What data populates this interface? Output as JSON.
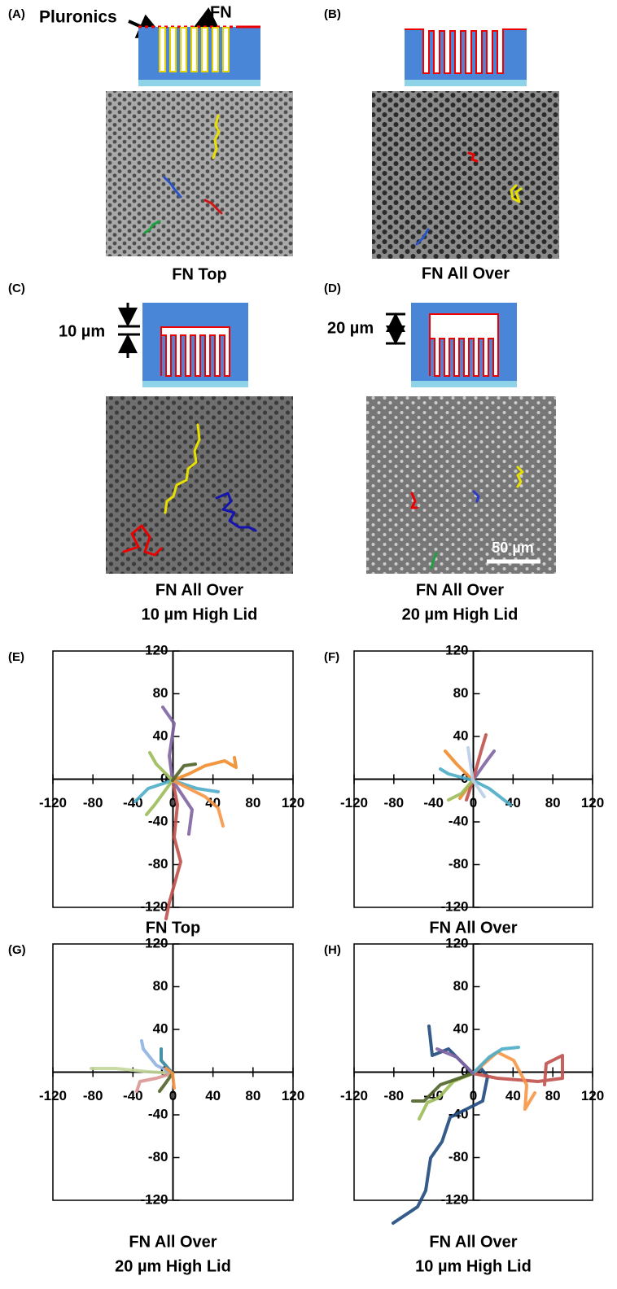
{
  "panels": [
    {
      "label": "(A)",
      "caption": [
        "FN Top"
      ],
      "annotations": [
        "Pluronics",
        "FN"
      ]
    },
    {
      "label": "(B)",
      "caption": [
        "FN All Over"
      ]
    },
    {
      "label": "(C)",
      "caption": [
        "FN All Over",
        "10 µm High Lid"
      ],
      "dimension": "10 µm"
    },
    {
      "label": "(D)",
      "caption": [
        "FN All Over",
        "20 µm High Lid"
      ],
      "dimension": "20 µm",
      "scale_bar": "50 µm"
    }
  ],
  "plots": [
    {
      "label": "(E)",
      "caption": [
        "FN Top"
      ]
    },
    {
      "label": "(F)",
      "caption": [
        "FN All Over"
      ]
    },
    {
      "label": "(G)",
      "caption": [
        "FN All Over",
        "20 µm High Lid"
      ]
    },
    {
      "label": "(H)",
      "caption": [
        "FN All Over",
        "10 µm High Lid"
      ]
    }
  ],
  "axis": {
    "xlim": [
      -120,
      120
    ],
    "ylim": [
      -120,
      120
    ],
    "xticks": [
      -120,
      -80,
      -40,
      0,
      40,
      80,
      120
    ],
    "yticks": [
      -120,
      -80,
      -40,
      0,
      40,
      80,
      120
    ]
  }
}
